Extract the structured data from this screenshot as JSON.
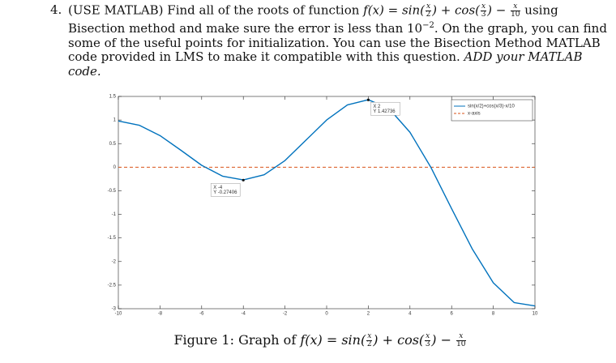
{
  "question": {
    "number": "4.",
    "parts": [
      {
        "kind": "text",
        "text": "(USE MATLAB) Find all of the roots of function "
      },
      {
        "kind": "math",
        "text": "f(x) = sin("
      },
      {
        "kind": "frac",
        "num": "x",
        "den": "2"
      },
      {
        "kind": "math",
        "text": ") + cos("
      },
      {
        "kind": "frac",
        "num": "x",
        "den": "3"
      },
      {
        "kind": "math",
        "text": ") − "
      },
      {
        "kind": "frac",
        "num": "x",
        "den": "10"
      },
      {
        "kind": "text",
        "text": " using Bisection method and make sure the error is less than 10"
      },
      {
        "kind": "sup",
        "text": "−2"
      },
      {
        "kind": "text",
        "text": ". On the graph, you can find some of the useful points for initialization. You can use the Bisection Method MATLAB code provided in LMS to make it compatible with this question. "
      },
      {
        "kind": "italic",
        "text": "ADD your MATLAB code."
      }
    ]
  },
  "chart_data": {
    "type": "line",
    "x": [
      -10,
      -9,
      -8,
      -7,
      -6,
      -5,
      -4,
      -3,
      -2,
      -1,
      0,
      1,
      2,
      3,
      4,
      5,
      6,
      7,
      8,
      9,
      10
    ],
    "series": [
      {
        "name": "sin(x/2)+cos(x/3)-x/10",
        "color": "#0072bd",
        "line_style": "solid",
        "values": [
          0.98,
          0.89,
          0.67,
          0.36,
          0.04,
          -0.19,
          -0.27,
          -0.16,
          0.14,
          0.57,
          1,
          1.32,
          1.43,
          1.24,
          0.74,
          0,
          -0.88,
          -1.74,
          -2.45,
          -2.87,
          -2.94
        ]
      },
      {
        "name": "x-axis",
        "color": "#d95319",
        "line_style": "dashed",
        "values": [
          0,
          0,
          0,
          0,
          0,
          0,
          0,
          0,
          0,
          0,
          0,
          0,
          0,
          0,
          0,
          0,
          0,
          0,
          0,
          0,
          0
        ]
      }
    ],
    "xlim": [
      -10,
      10
    ],
    "ylim": [
      -3,
      1.5
    ],
    "xticks": [
      -10,
      -8,
      -6,
      -4,
      -2,
      0,
      2,
      4,
      6,
      8,
      10
    ],
    "yticks": [
      -3,
      -2.5,
      -2,
      -1.5,
      -1,
      -0.5,
      0,
      0.5,
      1,
      1.5
    ],
    "legend": "northeast",
    "datatips": [
      {
        "x": -4,
        "y": -0.27406,
        "x_label": "X -4",
        "y_label": "Y -0.27406"
      },
      {
        "x": 2,
        "y": 1.42736,
        "x_label": "X 2",
        "y_label": "Y 1.42736"
      }
    ]
  },
  "caption": {
    "parts": [
      {
        "kind": "text",
        "text": "Figure 1: Graph of "
      },
      {
        "kind": "math",
        "text": "f(x) = sin("
      },
      {
        "kind": "frac",
        "num": "x",
        "den": "2"
      },
      {
        "kind": "math",
        "text": ") + cos("
      },
      {
        "kind": "frac",
        "num": "x",
        "den": "3"
      },
      {
        "kind": "math",
        "text": ") − "
      },
      {
        "kind": "frac",
        "num": "x",
        "den": "10"
      }
    ]
  }
}
